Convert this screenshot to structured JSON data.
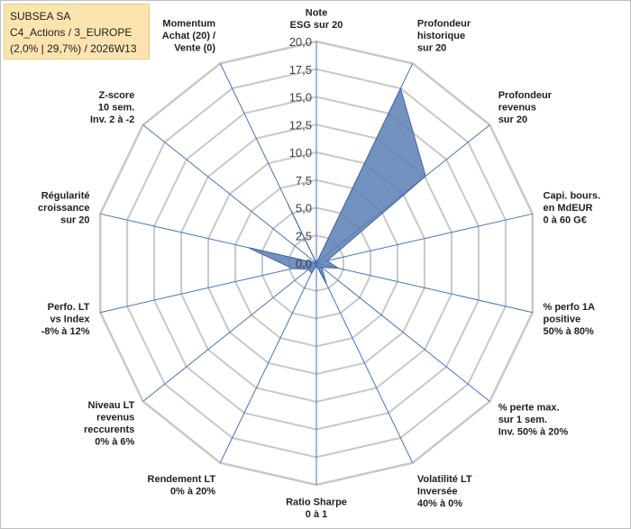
{
  "info": {
    "line1": "SUBSEA SA",
    "line2": "C4_Actions / 3_EUROPE",
    "line3": "(2,0% | 29,7%) / 2026W13"
  },
  "colors": {
    "grid": "#c8c8c8",
    "spoke": "#4472c4",
    "fill": "#5a7fb5",
    "stroke": "#3f67a8"
  },
  "chart_data": {
    "type": "radar",
    "title": "",
    "range": [
      0,
      20
    ],
    "tick_labels": [
      "0,0",
      "2,5",
      "5,0",
      "7,5",
      "10,0",
      "12,5",
      "15,0",
      "17,5",
      "20,0"
    ],
    "axes": [
      [
        "Note",
        "ESG sur 20"
      ],
      [
        "Profondeur",
        "historique",
        "sur 20"
      ],
      [
        "Profondeur",
        "revenus",
        "sur 20"
      ],
      [
        "Capi. bours.",
        "en MdEUR",
        "0 à 60 G€"
      ],
      [
        "% perfo 1A",
        "positive",
        "50% à 80%"
      ],
      [
        "% perte max.",
        "sur 1 sem.",
        "Inv. 50% à 20%"
      ],
      [
        "Volatilité LT",
        "Inversée",
        "40% à 0%"
      ],
      [
        "Ratio Sharpe",
        "0 à 1"
      ],
      [
        "Rendement LT",
        "0% à 20%"
      ],
      [
        "Niveau LT",
        "revenus",
        "reccurents",
        "0% à 6%"
      ],
      [
        "Perfo. LT",
        "vs Index",
        "-8% à 12%"
      ],
      [
        "Régularité",
        "croissance",
        "sur 20"
      ],
      [
        "Z-score",
        "10 sem.",
        "Inv. 2 à -2"
      ],
      [
        "Momentum",
        "Achat (20) /",
        "Vente (0)"
      ]
    ],
    "series": [
      {
        "values": [
          0,
          17.5,
          12.6,
          1.0,
          2.0,
          0.6,
          2.1,
          0.2,
          1.0,
          0.9,
          2.2,
          6.3,
          0.0,
          5.9
        ]
      }
    ]
  }
}
